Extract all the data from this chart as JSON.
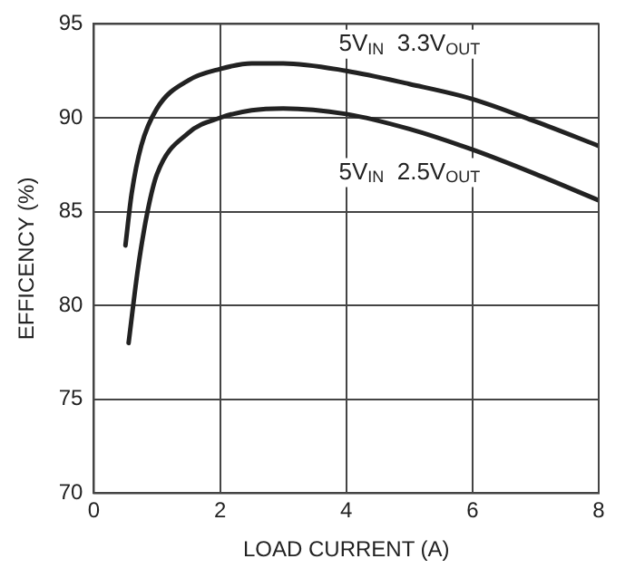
{
  "chart_data": {
    "type": "line",
    "xlabel": "LOAD CURRENT (A)",
    "ylabel": "EFFICENCY (%)",
    "xlim": [
      0,
      8
    ],
    "xticks": [
      0,
      2,
      4,
      6,
      8
    ],
    "ylim": [
      70,
      95
    ],
    "yticks": [
      70,
      75,
      80,
      85,
      90,
      95
    ],
    "grid": true,
    "legend": false,
    "marker": "none",
    "line_style": "solid",
    "series": [
      {
        "name": "5V$_{IN}$  3.3V$_{OUT}$",
        "color": "#222222",
        "x": [
          0.5,
          0.6,
          0.75,
          1,
          1.5,
          2,
          2.5,
          3,
          4,
          5,
          6,
          7,
          8
        ],
        "values": [
          83.2,
          86,
          88.5,
          90.5,
          92,
          92.6,
          92.9,
          92.9,
          92.5,
          91.8,
          91,
          89.8,
          88.5
        ]
      },
      {
        "name": "5V$_{IN}$  2.5V$_{OUT}$",
        "color": "#222222",
        "x": [
          0.55,
          0.7,
          0.85,
          1,
          1.5,
          2,
          2.5,
          3,
          4,
          5,
          6,
          7,
          8
        ],
        "values": [
          78,
          82,
          85,
          87,
          89.2,
          90,
          90.4,
          90.5,
          90.2,
          89.4,
          88.3,
          87,
          85.6
        ]
      }
    ]
  }
}
